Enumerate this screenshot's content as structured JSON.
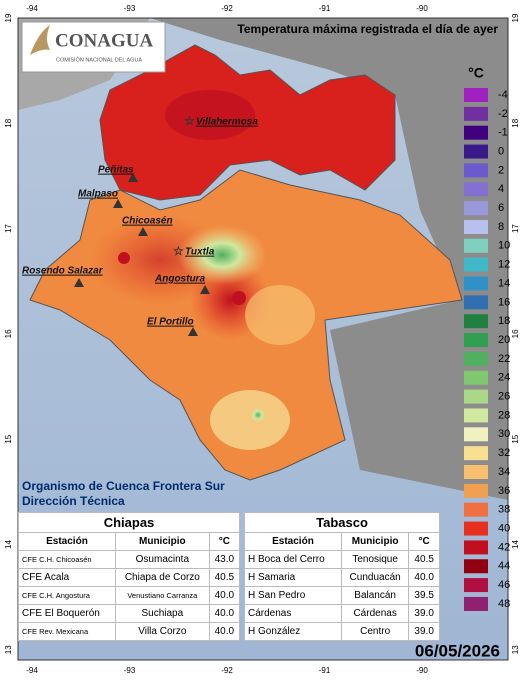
{
  "header": {
    "logo": "CONAGUA",
    "logo_subtitle": "COMISIÓN NACIONAL DEL AGUA",
    "title": "Temperatura máxima registrada el día de ayer"
  },
  "longitude_labels": [
    "-94",
    "-93",
    "-92",
    "-91",
    "-90"
  ],
  "latitude_labels": [
    "19",
    "18",
    "17",
    "16",
    "15",
    "14",
    "13"
  ],
  "legend": {
    "unit": "°C",
    "items": [
      {
        "label": "-4",
        "color": "#a020c0"
      },
      {
        "label": "-2",
        "color": "#7030a0"
      },
      {
        "label": "-1",
        "color": "#400080"
      },
      {
        "label": "0",
        "color": "#3a1a8a"
      },
      {
        "label": "2",
        "color": "#6a5acd"
      },
      {
        "label": "4",
        "color": "#8470d0"
      },
      {
        "label": "6",
        "color": "#9a98dd"
      },
      {
        "label": "8",
        "color": "#b8c0ee"
      },
      {
        "label": "10",
        "color": "#80d0c0"
      },
      {
        "label": "12",
        "color": "#40b8c8"
      },
      {
        "label": "14",
        "color": "#3090c8"
      },
      {
        "label": "16",
        "color": "#3070b0"
      },
      {
        "label": "18",
        "color": "#208040"
      },
      {
        "label": "20",
        "color": "#30a050"
      },
      {
        "label": "22",
        "color": "#50b060"
      },
      {
        "label": "24",
        "color": "#80c870"
      },
      {
        "label": "26",
        "color": "#a8d888"
      },
      {
        "label": "28",
        "color": "#d0e8a0"
      },
      {
        "label": "30",
        "color": "#f0f0c0"
      },
      {
        "label": "32",
        "color": "#f8e090"
      },
      {
        "label": "34",
        "color": "#f8c070"
      },
      {
        "label": "36",
        "color": "#f0a050"
      },
      {
        "label": "38",
        "color": "#f07040"
      },
      {
        "label": "40",
        "color": "#e83020"
      },
      {
        "label": "42",
        "color": "#c01020"
      },
      {
        "label": "44",
        "color": "#900010"
      },
      {
        "label": "46",
        "color": "#b01040"
      },
      {
        "label": "48",
        "color": "#902070"
      }
    ]
  },
  "places": [
    "Villahermosa",
    "Peñitas",
    "Malpaso",
    "Chicoasén",
    "Tuxtla",
    "Rosendo Salazar",
    "Angostura",
    "El Portillo"
  ],
  "organization": [
    "Organismo de Cuenca Frontera Sur",
    "Dirección Técnica"
  ],
  "tables": [
    {
      "title": "Chiapas",
      "headers": [
        "Estación",
        "Municipio",
        "°C"
      ],
      "rows": [
        [
          "CFE C.H. Chicoasén",
          "Osumacinta",
          "43.0"
        ],
        [
          "CFE Acala",
          "Chiapa de Corzo",
          "40.5"
        ],
        [
          "CFE C.H. Angostura",
          "Venustiano Carranza",
          "40.0"
        ],
        [
          "CFE El Boquerón",
          "Suchiapa",
          "40.0"
        ],
        [
          "CFE Rev. Mexicana",
          "Villa Corzo",
          "40.0"
        ]
      ]
    },
    {
      "title": "Tabasco",
      "headers": [
        "Estación",
        "Municipio",
        "°C"
      ],
      "rows": [
        [
          "H Boca del Cerro",
          "Tenosique",
          "40.5"
        ],
        [
          "H Samaria",
          "Cunduacán",
          "40.0"
        ],
        [
          "H San Pedro",
          "Balancán",
          "39.5"
        ],
        [
          "Cárdenas",
          "Cárdenas",
          "39.0"
        ],
        [
          "H González",
          "Centro",
          "39.0"
        ]
      ]
    }
  ],
  "date": "06/05/2026"
}
